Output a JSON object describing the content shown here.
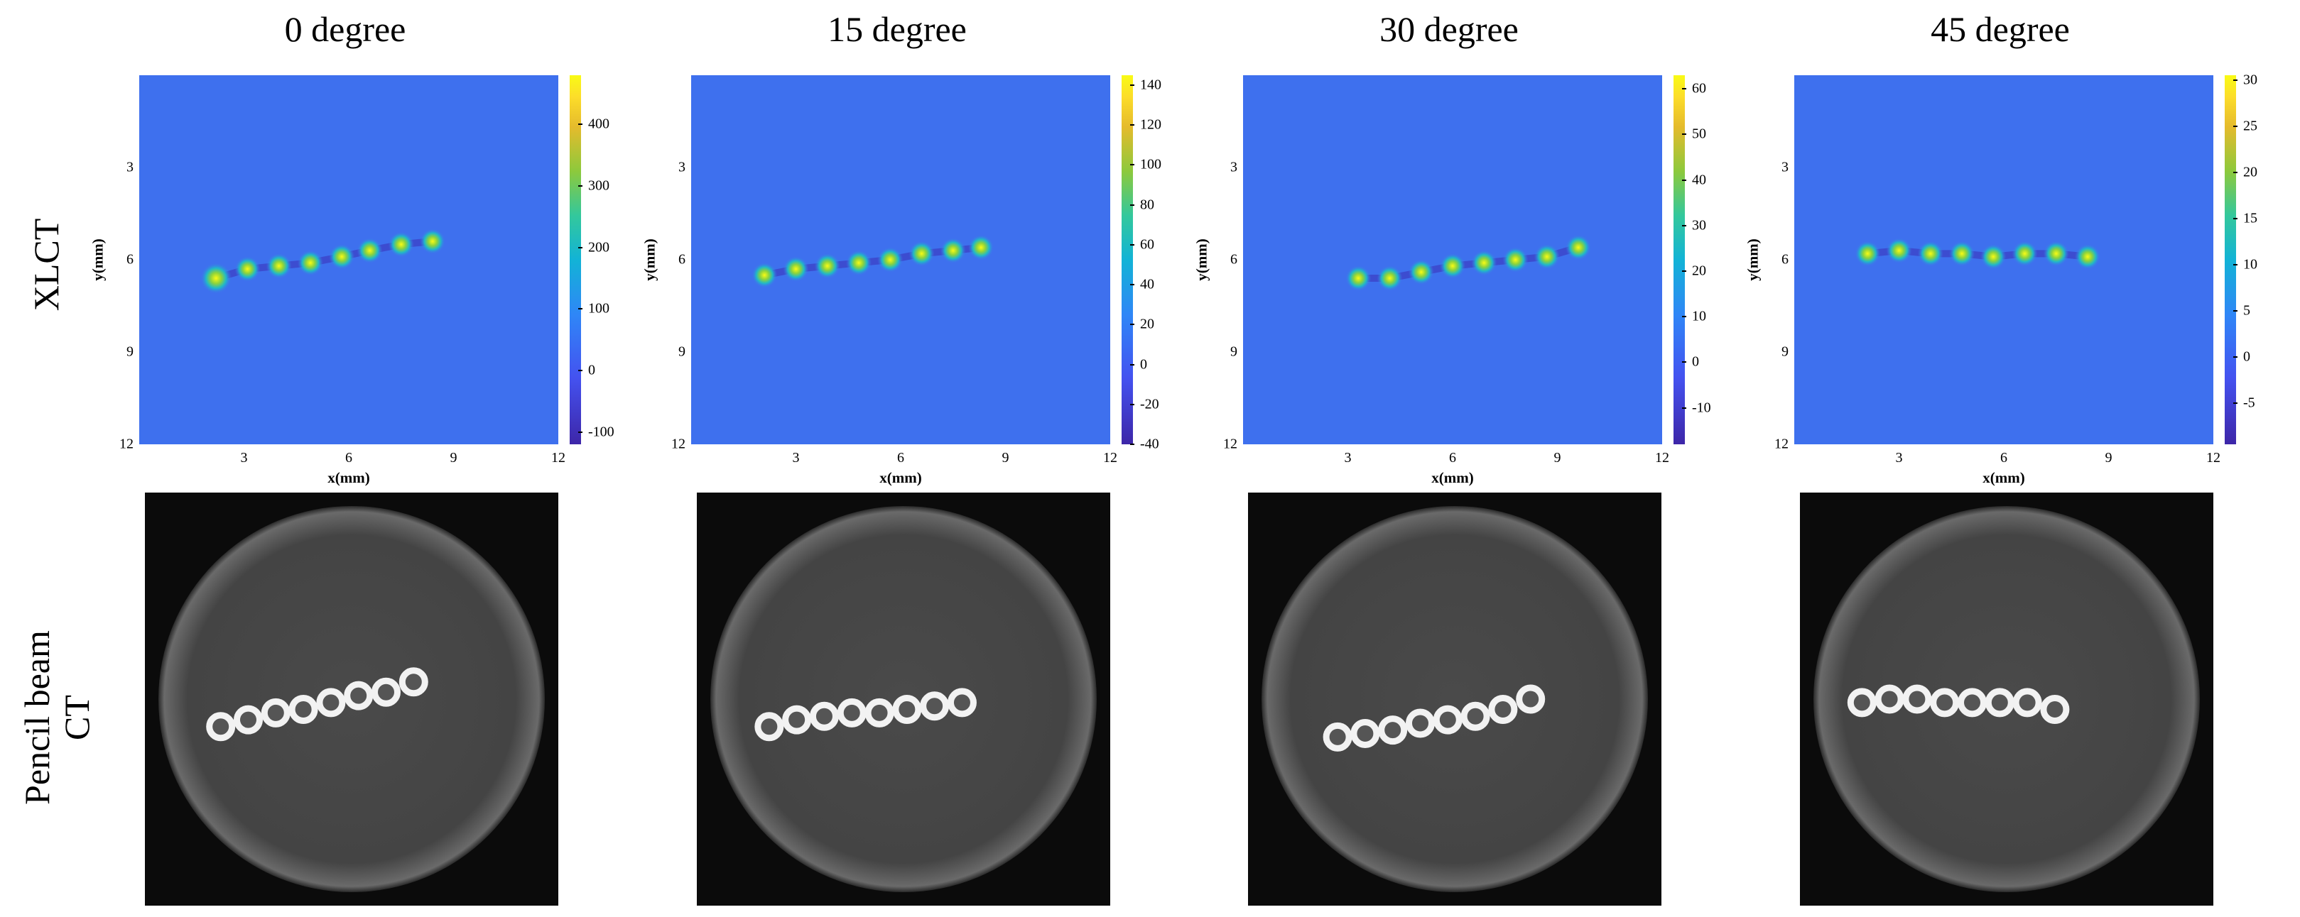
{
  "column_titles": [
    "0 degree",
    "15 degree",
    "30 degree",
    "45 degree"
  ],
  "row_labels": {
    "top": "XLCT",
    "bottom_line1": "Pencil beam",
    "bottom_line2": "CT"
  },
  "chart_data": [
    {
      "type": "heatmap",
      "title": "0 degree",
      "xlabel": "x(mm)",
      "ylabel": "y(mm)",
      "xlim": [
        0,
        12
      ],
      "ylim": [
        12,
        0
      ],
      "xticks": [
        "3",
        "6",
        "9",
        "12"
      ],
      "yticks": [
        "3",
        "6",
        "9",
        "12"
      ],
      "colorbar": {
        "ticks": [
          "400",
          "300",
          "200",
          "100",
          "0",
          "-100"
        ],
        "range": [
          -120,
          480
        ]
      },
      "targets": [
        [
          2.2,
          6.6
        ],
        [
          3.1,
          6.3
        ],
        [
          4.0,
          6.2
        ],
        [
          4.9,
          6.1
        ],
        [
          5.8,
          5.9
        ],
        [
          6.6,
          5.7
        ],
        [
          7.5,
          5.5
        ],
        [
          8.4,
          5.4
        ]
      ]
    },
    {
      "type": "heatmap",
      "title": "15 degree",
      "xlabel": "x(mm)",
      "ylabel": "y(mm)",
      "xlim": [
        0,
        12
      ],
      "ylim": [
        12,
        0
      ],
      "xticks": [
        "3",
        "6",
        "9",
        "12"
      ],
      "yticks": [
        "3",
        "6",
        "9",
        "12"
      ],
      "colorbar": {
        "ticks": [
          "140",
          "120",
          "100",
          "80",
          "60",
          "40",
          "20",
          "0",
          "-20",
          "-40"
        ],
        "range": [
          -40,
          145
        ]
      },
      "targets": [
        [
          2.1,
          6.5
        ],
        [
          3.0,
          6.3
        ],
        [
          3.9,
          6.2
        ],
        [
          4.8,
          6.1
        ],
        [
          5.7,
          6.0
        ],
        [
          6.6,
          5.8
        ],
        [
          7.5,
          5.7
        ],
        [
          8.3,
          5.6
        ]
      ]
    },
    {
      "type": "heatmap",
      "title": "30 degree",
      "xlabel": "x(mm)",
      "ylabel": "y(mm)",
      "xlim": [
        0,
        12
      ],
      "ylim": [
        12,
        0
      ],
      "xticks": [
        "3",
        "6",
        "9",
        "12"
      ],
      "yticks": [
        "3",
        "6",
        "9",
        "12"
      ],
      "colorbar": {
        "ticks": [
          "60",
          "50",
          "40",
          "30",
          "20",
          "10",
          "0",
          "-10"
        ],
        "range": [
          -18,
          63
        ]
      },
      "targets": [
        [
          3.3,
          6.6
        ],
        [
          4.2,
          6.6
        ],
        [
          5.1,
          6.4
        ],
        [
          6.0,
          6.2
        ],
        [
          6.9,
          6.1
        ],
        [
          7.8,
          6.0
        ],
        [
          8.7,
          5.9
        ],
        [
          9.6,
          5.6
        ]
      ]
    },
    {
      "type": "heatmap",
      "title": "45 degree",
      "xlabel": "x(mm)",
      "ylabel": "y(mm)",
      "xlim": [
        0,
        12
      ],
      "ylim": [
        12,
        0
      ],
      "xticks": [
        "3",
        "6",
        "9",
        "12"
      ],
      "yticks": [
        "3",
        "6",
        "9",
        "12"
      ],
      "colorbar": {
        "ticks": [
          "30",
          "25",
          "20",
          "15",
          "10",
          "5",
          "0",
          "-5"
        ],
        "range": [
          -9.5,
          30.5
        ]
      },
      "targets": [
        [
          2.1,
          5.8
        ],
        [
          3.0,
          5.7
        ],
        [
          3.9,
          5.8
        ],
        [
          4.8,
          5.8
        ],
        [
          5.7,
          5.9
        ],
        [
          6.6,
          5.8
        ],
        [
          7.5,
          5.8
        ],
        [
          8.4,
          5.9
        ]
      ]
    }
  ],
  "ct_targets": [
    [
      [
        2.2,
        6.8
      ],
      [
        3.0,
        6.6
      ],
      [
        3.8,
        6.4
      ],
      [
        4.6,
        6.3
      ],
      [
        5.4,
        6.1
      ],
      [
        6.2,
        5.9
      ],
      [
        7.0,
        5.8
      ],
      [
        7.8,
        5.5
      ]
    ],
    [
      [
        2.1,
        6.8
      ],
      [
        2.9,
        6.6
      ],
      [
        3.7,
        6.5
      ],
      [
        4.5,
        6.4
      ],
      [
        5.3,
        6.4
      ],
      [
        6.1,
        6.3
      ],
      [
        6.9,
        6.2
      ],
      [
        7.7,
        6.1
      ]
    ],
    [
      [
        2.6,
        7.1
      ],
      [
        3.4,
        7.0
      ],
      [
        4.2,
        6.9
      ],
      [
        5.0,
        6.7
      ],
      [
        5.8,
        6.6
      ],
      [
        6.6,
        6.5
      ],
      [
        7.4,
        6.3
      ],
      [
        8.2,
        6.0
      ]
    ],
    [
      [
        1.8,
        6.1
      ],
      [
        2.6,
        6.0
      ],
      [
        3.4,
        6.0
      ],
      [
        4.2,
        6.1
      ],
      [
        5.0,
        6.1
      ],
      [
        5.8,
        6.1
      ],
      [
        6.6,
        6.1
      ],
      [
        7.4,
        6.3
      ]
    ]
  ]
}
